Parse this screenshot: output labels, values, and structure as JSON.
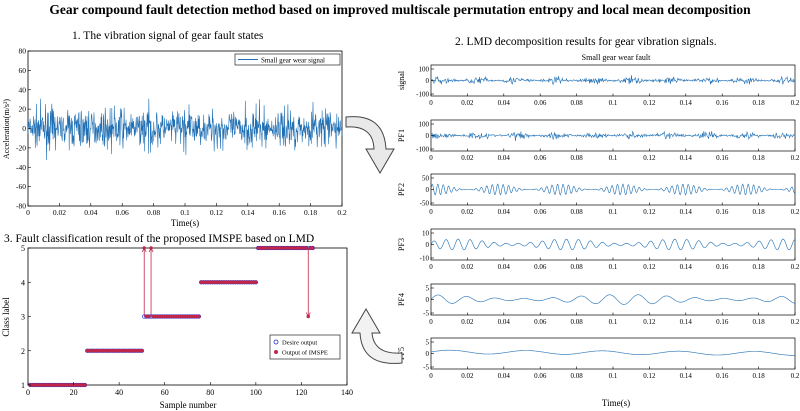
{
  "title": "Gear compound fault detection method based on improved multiscale permutation entropy and local mean  decomposition",
  "sections": {
    "vibration": "1. The vibration signal of gear fault states",
    "lmd": "2. LMD decomposition results for gear vibration signals.",
    "classification": "3. Fault classification result of the proposed IMSPE based on LMD"
  },
  "colors": {
    "signal": "#1f6fb4",
    "desire": "#1f2fd0",
    "output": "#c0264a",
    "arrow": "#555555"
  },
  "chart_data": [
    {
      "type": "line",
      "legend": [
        "Small gear wear signal"
      ],
      "xlabel": "Time(s)",
      "ylabel": "Acceleration(m/s²)",
      "xlim": [
        0,
        0.2
      ],
      "ylim": [
        -80,
        80
      ],
      "xticks": [
        "0",
        "0.02",
        "0.04",
        "0.06",
        "0.08",
        "0.1",
        "0.12",
        "0.14",
        "0.16",
        "0.18",
        "0.2"
      ],
      "yticks": [
        "-80",
        "-60",
        "-40",
        "-20",
        "0",
        "20",
        "40",
        "60",
        "80"
      ]
    },
    {
      "type": "line",
      "title": "Small gear wear fault",
      "xlabel": "Time(s)",
      "xlim": [
        0,
        0.2
      ],
      "xticks": [
        "0",
        "0.02",
        "0.04",
        "0.06",
        "0.08",
        "0.1",
        "0.12",
        "0.14",
        "0.16",
        "0.18",
        "0.2"
      ],
      "series": [
        {
          "name": "signal",
          "yticks": [
            "100",
            "0",
            "-100"
          ],
          "ylim": [
            -100,
            100
          ]
        },
        {
          "name": "PF1",
          "yticks": [
            "100",
            "0",
            "-100"
          ],
          "ylim": [
            -100,
            100
          ]
        },
        {
          "name": "PF2",
          "yticks": [
            "50",
            "0",
            "-50"
          ],
          "ylim": [
            -50,
            50
          ]
        },
        {
          "name": "PF3",
          "yticks": [
            "10",
            "0",
            "-10"
          ],
          "ylim": [
            -10,
            10
          ]
        },
        {
          "name": "PF4",
          "yticks": [
            "5",
            "0",
            "-5"
          ],
          "ylim": [
            -5,
            5
          ]
        },
        {
          "name": "PF5",
          "yticks": [
            "5",
            "0",
            "-5"
          ],
          "ylim": [
            -5,
            5
          ]
        }
      ]
    },
    {
      "type": "scatter",
      "xlabel": "Sample number",
      "ylabel": "Class label",
      "xlim": [
        0,
        140
      ],
      "ylim": [
        1,
        5
      ],
      "xticks": [
        "0",
        "20",
        "40",
        "60",
        "80",
        "100",
        "120",
        "140"
      ],
      "yticks": [
        "1",
        "2",
        "3",
        "4",
        "5"
      ],
      "legend": [
        "Desire output",
        "Output of IMSPE"
      ],
      "classes": [
        {
          "label": 1,
          "from": 1,
          "to": 25
        },
        {
          "label": 2,
          "from": 26,
          "to": 50
        },
        {
          "label": 3,
          "from": 51,
          "to": 75
        },
        {
          "label": 4,
          "from": 76,
          "to": 100
        },
        {
          "label": 5,
          "from": 101,
          "to": 125
        }
      ],
      "misclassified": [
        {
          "sample": 51,
          "desire": 3,
          "output": 5
        },
        {
          "sample": 54,
          "desire": 3,
          "output": 5
        },
        {
          "sample": 123,
          "desire": 5,
          "output": 3
        }
      ]
    }
  ]
}
